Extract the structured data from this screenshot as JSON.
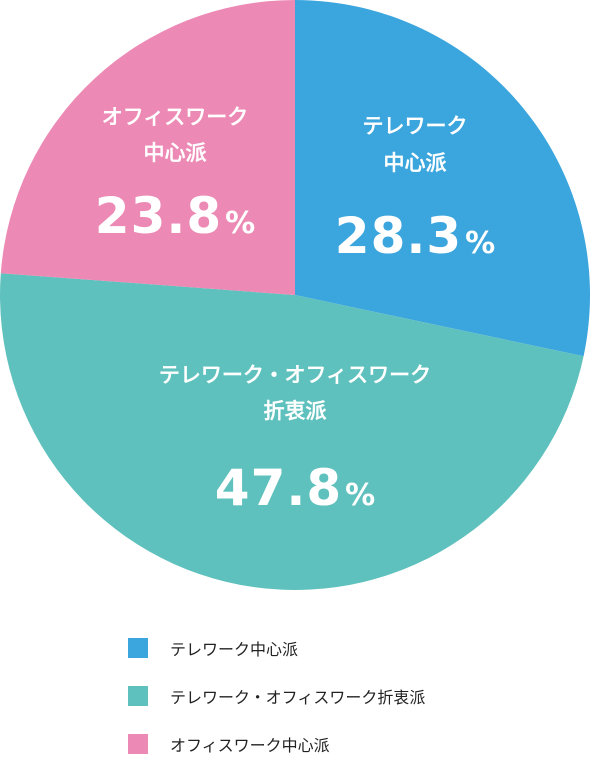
{
  "chart_data": {
    "type": "pie",
    "title": "",
    "slices": [
      {
        "name": "テレワーク中心派",
        "label_lines": [
          "テレワーク",
          "中心派"
        ],
        "value": 28.3,
        "value_text": "28.3",
        "unit": "%",
        "color": "#3ba5dd"
      },
      {
        "name": "テレワーク・オフィスワーク折衷派",
        "label_lines": [
          "テレワーク・オフィスワーク",
          "折衷派"
        ],
        "value": 47.8,
        "value_text": "47.8",
        "unit": "%",
        "color": "#5fc1bd"
      },
      {
        "name": "オフィスワーク中心派",
        "label_lines": [
          "オフィスワーク",
          "中心派"
        ],
        "value": 23.8,
        "value_text": "23.8",
        "unit": "%",
        "color": "#ec89b4"
      }
    ],
    "legend": {
      "position": "bottom",
      "items": [
        "テレワーク中心派",
        "テレワーク・オフィスワーク折衷派",
        "オフィスワーク中心派"
      ]
    }
  }
}
